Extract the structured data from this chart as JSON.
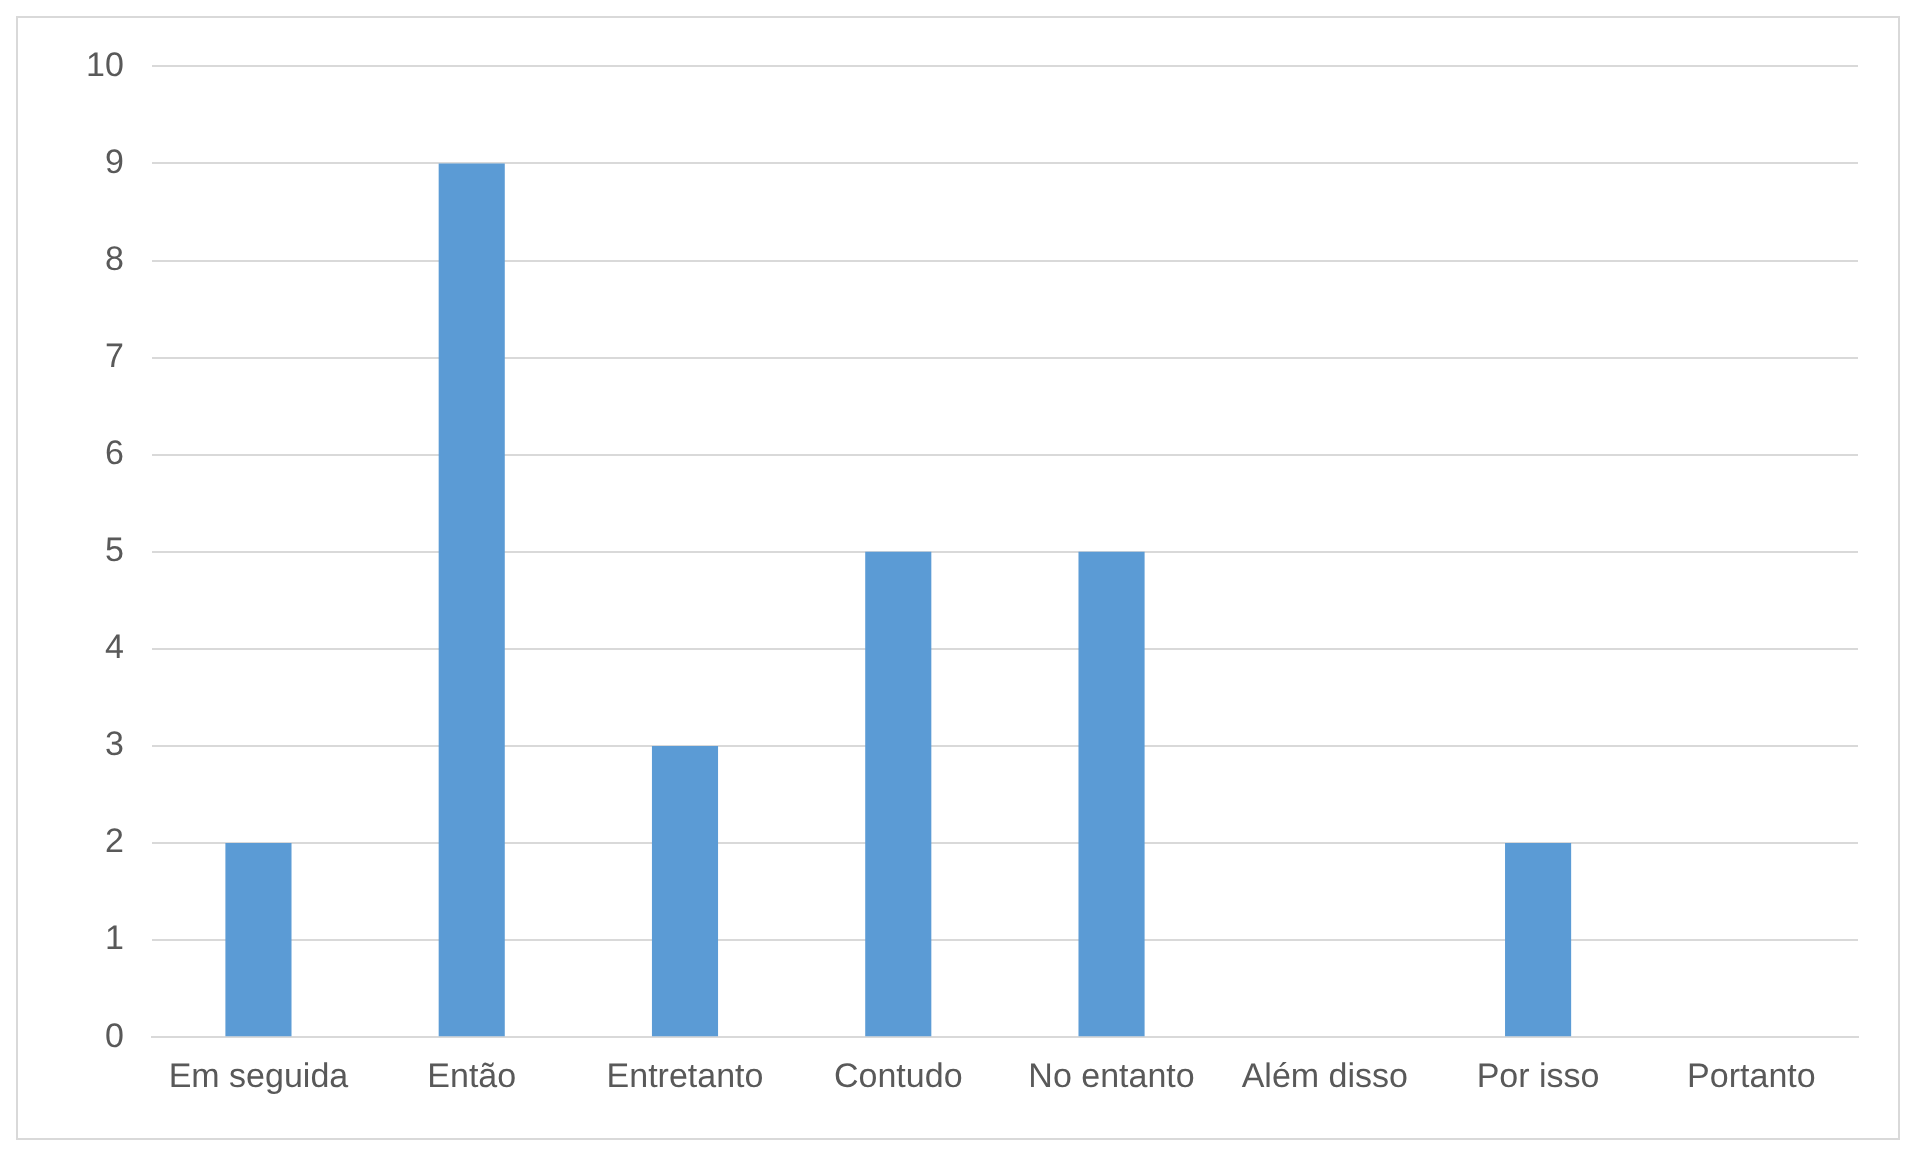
{
  "chart_data": {
    "type": "bar",
    "categories": [
      "Em seguida",
      "Então",
      "Entretanto",
      "Contudo",
      "No entanto",
      "Além disso",
      "Por isso",
      "Portanto"
    ],
    "values": [
      2,
      9,
      3,
      5,
      5,
      0,
      2,
      0
    ],
    "color": "#5b9bd5",
    "ylim": [
      0,
      10
    ],
    "yticks": [
      0,
      1,
      2,
      3,
      4,
      5,
      6,
      7,
      8,
      9,
      10
    ],
    "grid": "y",
    "legend": false
  }
}
